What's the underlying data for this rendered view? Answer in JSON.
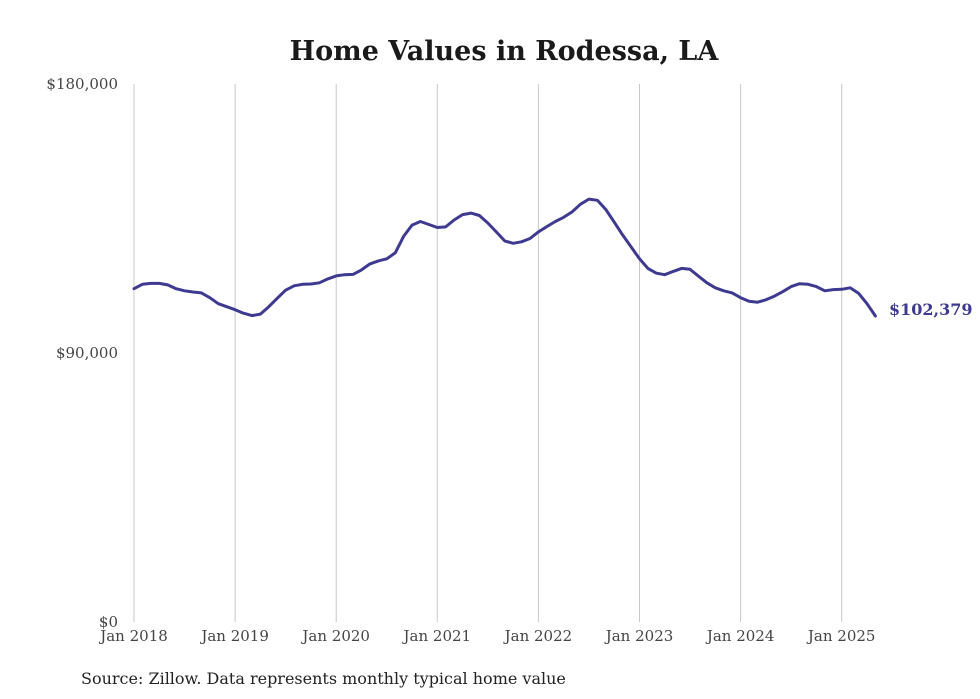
{
  "chart_data": {
    "type": "line",
    "title": "Home Values in Rodessa, LA",
    "xlabel": "",
    "ylabel": "",
    "ylim": [
      0,
      180000
    ],
    "y_ticks": [
      {
        "value": 180000,
        "label": "$180,000"
      },
      {
        "value": 90000,
        "label": "$90,000"
      },
      {
        "value": 0,
        "label": "$0"
      }
    ],
    "x_ticks": [
      "Jan 2018",
      "Jan 2019",
      "Jan 2020",
      "Jan 2021",
      "Jan 2022",
      "Jan 2023",
      "Jan 2024",
      "Jan 2025"
    ],
    "grid": "vertical",
    "line_color": "#3d3a8f",
    "end_label": "$102,379",
    "series": [
      {
        "x": [
          "2018-01",
          "2018-02",
          "2018-03",
          "2018-04",
          "2018-05",
          "2018-06",
          "2018-07",
          "2018-08",
          "2018-09",
          "2018-10",
          "2018-11",
          "2018-12",
          "2019-01",
          "2019-02",
          "2019-03",
          "2019-04",
          "2019-05",
          "2019-06",
          "2019-07",
          "2019-08",
          "2019-09",
          "2019-10",
          "2019-11",
          "2019-12",
          "2020-01",
          "2020-02",
          "2020-03",
          "2020-04",
          "2020-05",
          "2020-06",
          "2020-07",
          "2020-08",
          "2020-09",
          "2020-10",
          "2020-11",
          "2020-12",
          "2021-01",
          "2021-02",
          "2021-03",
          "2021-04",
          "2021-05",
          "2021-06",
          "2021-07",
          "2021-08",
          "2021-09",
          "2021-10",
          "2021-11",
          "2021-12",
          "2022-01",
          "2022-02",
          "2022-03",
          "2022-04",
          "2022-05",
          "2022-06",
          "2022-07",
          "2022-08",
          "2022-09",
          "2022-10",
          "2022-11",
          "2022-12",
          "2023-01",
          "2023-02",
          "2023-03",
          "2023-04",
          "2023-05",
          "2023-06",
          "2023-07",
          "2023-08",
          "2023-09",
          "2023-10",
          "2023-11",
          "2023-12",
          "2024-01",
          "2024-02",
          "2024-03",
          "2024-04",
          "2024-05",
          "2024-06",
          "2024-07",
          "2024-08",
          "2024-09",
          "2024-10",
          "2024-11",
          "2024-12",
          "2025-01",
          "2025-02",
          "2025-03",
          "2025-04",
          "2025-05"
        ],
        "values": [
          111500,
          113000,
          113300,
          113300,
          112800,
          111500,
          110800,
          110400,
          110100,
          108500,
          106500,
          105500,
          104500,
          103300,
          102500,
          103000,
          105500,
          108300,
          111000,
          112500,
          113000,
          113100,
          113500,
          114800,
          115800,
          116200,
          116300,
          117800,
          119800,
          120800,
          121500,
          123500,
          129000,
          132800,
          134000,
          133000,
          132000,
          132200,
          134500,
          136300,
          136800,
          136000,
          133500,
          130500,
          127500,
          126700,
          127200,
          128300,
          130500,
          132300,
          134000,
          135400,
          137200,
          139800,
          141500,
          141100,
          138000,
          133800,
          129500,
          125500,
          121500,
          118300,
          116700,
          116200,
          117300,
          118300,
          118000,
          115700,
          113500,
          111800,
          110800,
          110100,
          108500,
          107300,
          107000,
          107800,
          109000,
          110500,
          112200,
          113200,
          113000,
          112200,
          110800,
          111200,
          111300,
          111800,
          110000,
          106500,
          102379
        ]
      }
    ]
  },
  "footer": {
    "source": "Source: Zillow. Data represents monthly typical home value"
  }
}
